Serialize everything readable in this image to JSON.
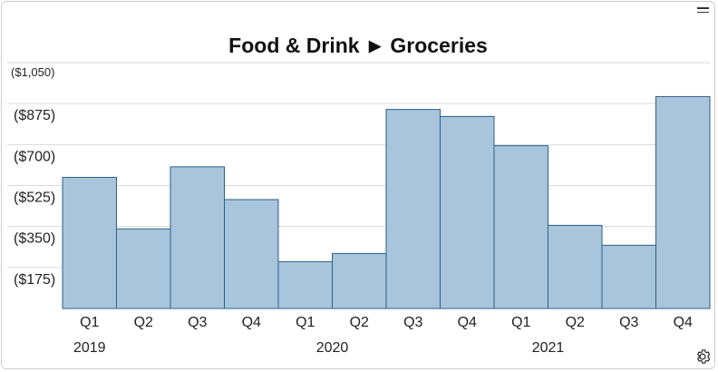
{
  "header": {
    "title_parent": "Food & Drink",
    "title_child": "Groceries",
    "menu_icon": "hamburger-menu-icon",
    "settings_icon": "gear-icon"
  },
  "chart_data": {
    "type": "bar",
    "title": "Food & Drink ▶ Groceries",
    "categories": [
      "Q1",
      "Q2",
      "Q3",
      "Q4",
      "Q1",
      "Q2",
      "Q3",
      "Q4",
      "Q1",
      "Q2",
      "Q3",
      "Q4"
    ],
    "years": [
      {
        "label": "2019",
        "quarters": 4
      },
      {
        "label": "2020",
        "quarters": 4
      },
      {
        "label": "2021",
        "quarters": 4
      }
    ],
    "values": [
      -560,
      -340,
      -605,
      -465,
      -200,
      -235,
      -850,
      -820,
      -695,
      -355,
      -270,
      -905
    ],
    "y_ticks": [
      -175,
      -350,
      -525,
      -700,
      -875,
      -1050
    ],
    "y_tick_labels": [
      "($175)",
      "($350)",
      "($525)",
      "($700)",
      "($875)",
      "($1,050)"
    ],
    "ylim": [
      0,
      -1050
    ],
    "grid": true,
    "colors": {
      "bar_fill": "#a8c5db",
      "bar_stroke": "#2e5f86",
      "grid": "#d9d9d9"
    }
  }
}
